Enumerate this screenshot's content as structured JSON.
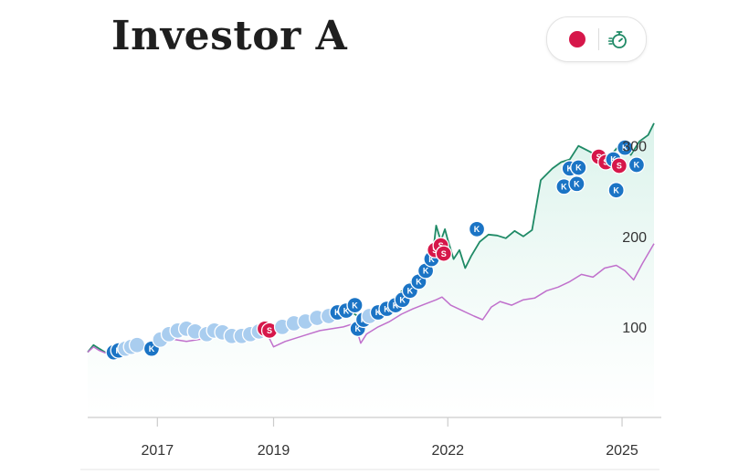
{
  "header": {
    "title": "Investor A",
    "toggle_icons": [
      "red-dot-icon",
      "stopwatch-icon"
    ]
  },
  "colors": {
    "stock_line": "#1f8a66",
    "benchmark_line": "#c070cc",
    "area_fill": "#e6f6f1",
    "buy_marker": "#1b74c5",
    "buy_marker_light": "#a9cdef",
    "sell_marker": "#d6174a",
    "axis": "#cccccc"
  },
  "chart_data": {
    "type": "line",
    "x_ticks": [
      {
        "label": "2017",
        "t": 2017.0
      },
      {
        "label": "2019",
        "t": 2019.0
      },
      {
        "label": "2022",
        "t": 2022.0
      },
      {
        "label": "2025",
        "t": 2025.0
      }
    ],
    "y_ticks": [
      {
        "label": "100",
        "v": 100
      },
      {
        "label": "200",
        "v": 200
      },
      {
        "label": "300",
        "v": 300
      }
    ],
    "xlim": [
      2015.8,
      2025.55
    ],
    "ylim": [
      0,
      336
    ],
    "series": [
      {
        "key": "stock",
        "points": [
          [
            2015.8,
            72
          ],
          [
            2015.9,
            80
          ],
          [
            2016.0,
            76
          ],
          [
            2016.15,
            70
          ],
          [
            2016.3,
            66
          ],
          [
            2016.45,
            70
          ],
          [
            2016.6,
            74
          ],
          [
            2016.8,
            78
          ],
          [
            2017.0,
            82
          ],
          [
            2017.2,
            88
          ],
          [
            2017.4,
            95
          ],
          [
            2017.6,
            97
          ],
          [
            2017.8,
            96
          ],
          [
            2017.95,
            95
          ],
          [
            2018.15,
            98
          ],
          [
            2018.3,
            97
          ],
          [
            2018.45,
            93
          ],
          [
            2018.6,
            95
          ],
          [
            2018.75,
            97
          ],
          [
            2018.9,
            100
          ],
          [
            2019.0,
            95
          ],
          [
            2019.15,
            100
          ],
          [
            2019.3,
            104
          ],
          [
            2019.5,
            108
          ],
          [
            2019.7,
            110
          ],
          [
            2019.85,
            109
          ],
          [
            2020.0,
            112
          ],
          [
            2020.15,
            115
          ],
          [
            2020.3,
            118
          ],
          [
            2020.45,
            112
          ],
          [
            2020.55,
            105
          ],
          [
            2020.7,
            113
          ],
          [
            2020.9,
            123
          ],
          [
            2021.1,
            133
          ],
          [
            2021.3,
            145
          ],
          [
            2021.5,
            158
          ],
          [
            2021.65,
            172
          ],
          [
            2021.75,
            185
          ],
          [
            2021.8,
            212
          ],
          [
            2021.88,
            195
          ],
          [
            2021.95,
            208
          ],
          [
            2022.0,
            196
          ],
          [
            2022.1,
            175
          ],
          [
            2022.2,
            185
          ],
          [
            2022.3,
            165
          ],
          [
            2022.4,
            178
          ],
          [
            2022.55,
            194
          ],
          [
            2022.7,
            202
          ],
          [
            2022.85,
            201
          ],
          [
            2023.0,
            198
          ],
          [
            2023.15,
            206
          ],
          [
            2023.3,
            200
          ],
          [
            2023.45,
            207
          ],
          [
            2023.6,
            262
          ],
          [
            2023.8,
            275
          ],
          [
            2023.95,
            282
          ],
          [
            2024.1,
            285
          ],
          [
            2024.25,
            300
          ],
          [
            2024.4,
            295
          ],
          [
            2024.55,
            290
          ],
          [
            2024.7,
            278
          ],
          [
            2024.85,
            293
          ],
          [
            2025.0,
            304
          ],
          [
            2025.15,
            290
          ],
          [
            2025.3,
            305
          ],
          [
            2025.45,
            312
          ],
          [
            2025.55,
            325
          ]
        ],
        "fill": true
      },
      {
        "key": "benchmark",
        "points": [
          [
            2015.8,
            72
          ],
          [
            2015.9,
            78
          ],
          [
            2016.0,
            74
          ],
          [
            2016.15,
            70
          ],
          [
            2016.3,
            67
          ],
          [
            2016.5,
            72
          ],
          [
            2016.7,
            76
          ],
          [
            2016.9,
            80
          ],
          [
            2017.1,
            84
          ],
          [
            2017.3,
            86
          ],
          [
            2017.5,
            84
          ],
          [
            2017.7,
            86
          ],
          [
            2017.9,
            88
          ],
          [
            2018.1,
            90
          ],
          [
            2018.3,
            89
          ],
          [
            2018.5,
            88
          ],
          [
            2018.7,
            90
          ],
          [
            2018.9,
            91
          ],
          [
            2019.0,
            78
          ],
          [
            2019.2,
            84
          ],
          [
            2019.4,
            88
          ],
          [
            2019.6,
            92
          ],
          [
            2019.8,
            96
          ],
          [
            2020.0,
            98
          ],
          [
            2020.2,
            100
          ],
          [
            2020.4,
            104
          ],
          [
            2020.5,
            82
          ],
          [
            2020.6,
            92
          ],
          [
            2020.8,
            100
          ],
          [
            2021.0,
            106
          ],
          [
            2021.2,
            114
          ],
          [
            2021.4,
            120
          ],
          [
            2021.6,
            125
          ],
          [
            2021.8,
            130
          ],
          [
            2021.9,
            133
          ],
          [
            2022.05,
            124
          ],
          [
            2022.25,
            118
          ],
          [
            2022.45,
            112
          ],
          [
            2022.6,
            108
          ],
          [
            2022.75,
            122
          ],
          [
            2022.9,
            128
          ],
          [
            2023.1,
            124
          ],
          [
            2023.3,
            130
          ],
          [
            2023.5,
            132
          ],
          [
            2023.7,
            140
          ],
          [
            2023.9,
            144
          ],
          [
            2024.1,
            150
          ],
          [
            2024.3,
            158
          ],
          [
            2024.5,
            155
          ],
          [
            2024.7,
            165
          ],
          [
            2024.9,
            168
          ],
          [
            2025.05,
            162
          ],
          [
            2025.2,
            152
          ],
          [
            2025.35,
            170
          ],
          [
            2025.55,
            192
          ]
        ],
        "fill": false
      }
    ],
    "trades": [
      {
        "t": 2016.25,
        "v": 72,
        "side": "buy",
        "label": "K"
      },
      {
        "t": 2016.33,
        "v": 74,
        "side": "buy",
        "label": "K"
      },
      {
        "t": 2016.45,
        "v": 76,
        "side": "buy_light",
        "label": ""
      },
      {
        "t": 2016.55,
        "v": 78,
        "side": "buy_light",
        "label": ""
      },
      {
        "t": 2016.65,
        "v": 80,
        "side": "buy_light",
        "label": ""
      },
      {
        "t": 2016.9,
        "v": 76,
        "side": "buy",
        "label": "K"
      },
      {
        "t": 2017.05,
        "v": 86,
        "side": "buy_light",
        "label": ""
      },
      {
        "t": 2017.2,
        "v": 92,
        "side": "buy_light",
        "label": ""
      },
      {
        "t": 2017.35,
        "v": 96,
        "side": "buy_light",
        "label": ""
      },
      {
        "t": 2017.5,
        "v": 98,
        "side": "buy_light",
        "label": ""
      },
      {
        "t": 2017.65,
        "v": 95,
        "side": "buy_light",
        "label": ""
      },
      {
        "t": 2017.85,
        "v": 92,
        "side": "buy_light",
        "label": ""
      },
      {
        "t": 2017.98,
        "v": 96,
        "side": "buy_light",
        "label": ""
      },
      {
        "t": 2018.12,
        "v": 94,
        "side": "buy_light",
        "label": ""
      },
      {
        "t": 2018.28,
        "v": 90,
        "side": "buy_light",
        "label": ""
      },
      {
        "t": 2018.45,
        "v": 90,
        "side": "buy_light",
        "label": ""
      },
      {
        "t": 2018.6,
        "v": 92,
        "side": "buy_light",
        "label": ""
      },
      {
        "t": 2018.75,
        "v": 95,
        "side": "buy_light",
        "label": ""
      },
      {
        "t": 2018.85,
        "v": 98,
        "side": "sell",
        "label": "S"
      },
      {
        "t": 2018.93,
        "v": 96,
        "side": "sell",
        "label": "S"
      },
      {
        "t": 2019.15,
        "v": 100,
        "side": "buy_light",
        "label": ""
      },
      {
        "t": 2019.35,
        "v": 104,
        "side": "buy_light",
        "label": ""
      },
      {
        "t": 2019.55,
        "v": 106,
        "side": "buy_light",
        "label": ""
      },
      {
        "t": 2019.75,
        "v": 110,
        "side": "buy_light",
        "label": ""
      },
      {
        "t": 2019.95,
        "v": 112,
        "side": "buy_light",
        "label": ""
      },
      {
        "t": 2020.1,
        "v": 116,
        "side": "buy",
        "label": "K"
      },
      {
        "t": 2020.25,
        "v": 118,
        "side": "buy",
        "label": "K"
      },
      {
        "t": 2020.4,
        "v": 124,
        "side": "buy",
        "label": "K"
      },
      {
        "t": 2020.45,
        "v": 98,
        "side": "buy",
        "label": "K"
      },
      {
        "t": 2020.55,
        "v": 108,
        "side": "buy",
        "label": "K"
      },
      {
        "t": 2020.65,
        "v": 112,
        "side": "buy_light",
        "label": ""
      },
      {
        "t": 2020.8,
        "v": 116,
        "side": "buy",
        "label": "K"
      },
      {
        "t": 2020.95,
        "v": 120,
        "side": "buy",
        "label": "K"
      },
      {
        "t": 2021.1,
        "v": 124,
        "side": "buy",
        "label": "K"
      },
      {
        "t": 2021.22,
        "v": 130,
        "side": "buy",
        "label": "K"
      },
      {
        "t": 2021.35,
        "v": 140,
        "side": "buy",
        "label": "K"
      },
      {
        "t": 2021.5,
        "v": 150,
        "side": "buy",
        "label": "K"
      },
      {
        "t": 2021.62,
        "v": 162,
        "side": "buy",
        "label": "K"
      },
      {
        "t": 2021.72,
        "v": 175,
        "side": "buy",
        "label": "K"
      },
      {
        "t": 2021.78,
        "v": 185,
        "side": "sell",
        "label": "S"
      },
      {
        "t": 2021.88,
        "v": 190,
        "side": "sell",
        "label": "S"
      },
      {
        "t": 2021.93,
        "v": 181,
        "side": "sell",
        "label": "S"
      },
      {
        "t": 2022.5,
        "v": 208,
        "side": "buy",
        "label": "K"
      },
      {
        "t": 2024.0,
        "v": 255,
        "side": "buy",
        "label": "K"
      },
      {
        "t": 2024.1,
        "v": 275,
        "side": "buy",
        "label": "K"
      },
      {
        "t": 2024.25,
        "v": 276,
        "side": "buy",
        "label": "K"
      },
      {
        "t": 2024.22,
        "v": 258,
        "side": "buy",
        "label": "K"
      },
      {
        "t": 2024.6,
        "v": 288,
        "side": "sell",
        "label": "S"
      },
      {
        "t": 2024.72,
        "v": 282,
        "side": "sell",
        "label": "S"
      },
      {
        "t": 2024.85,
        "v": 285,
        "side": "buy",
        "label": "K"
      },
      {
        "t": 2024.95,
        "v": 278,
        "side": "sell",
        "label": "S"
      },
      {
        "t": 2024.9,
        "v": 251,
        "side": "buy",
        "label": "K"
      },
      {
        "t": 2025.25,
        "v": 279,
        "side": "buy",
        "label": "K"
      },
      {
        "t": 2025.05,
        "v": 298,
        "side": "buy",
        "label": "K"
      }
    ]
  }
}
